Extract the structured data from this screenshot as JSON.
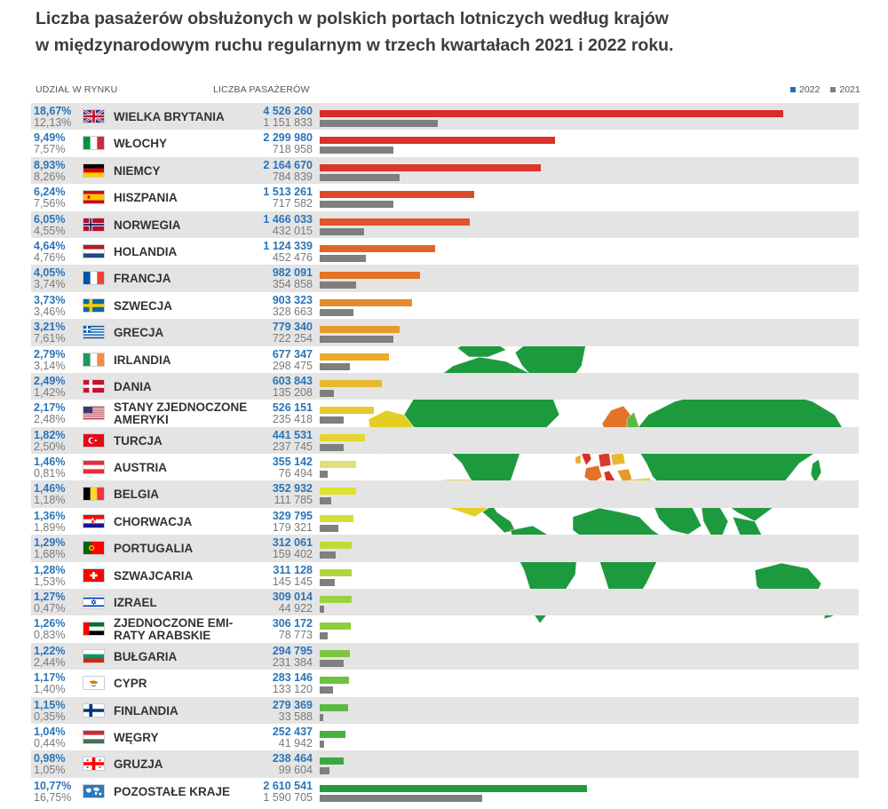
{
  "title_line1": "Liczba pasażerów obsłużonych w polskich portach lotniczych według krajów",
  "title_line2": "w międzynarodowym ruchu regularnym w trzech kwartałach 2021 i 2022 roku.",
  "header_share": "UDZIAŁ W RYNKU",
  "header_count": "LICZBA PASAŻERÓW",
  "legend": {
    "y2022": "2022",
    "y2021": "2021",
    "c2022": "#1f6fbf",
    "c2021": "#7f7f7f"
  },
  "colors": {
    "map_land": "#1e9a3e",
    "map_usa": "#e3cf23",
    "bar_2021": "#7f7f7f",
    "row_alt": "#e4e4e4"
  },
  "chart_data": {
    "type": "bar",
    "orientation": "horizontal",
    "xlim": [
      0,
      4600000
    ],
    "series_names": [
      "2022",
      "2021"
    ],
    "rows": [
      {
        "country": "WIELKA BRYTANIA",
        "share_2022": "18,67%",
        "share_2021": "12,13%",
        "v2022": 4526260,
        "v2021": 1151833,
        "v2022_label": "4 526 260",
        "v2021_label": "1 151 833",
        "color": "#d82d2b",
        "flag": "gb"
      },
      {
        "country": "WŁOCHY",
        "share_2022": "9,49%",
        "share_2021": "7,57%",
        "v2022": 2299980,
        "v2021": 718958,
        "v2022_label": "2 299 980",
        "v2021_label": "718 958",
        "color": "#d9312b",
        "flag": "it"
      },
      {
        "country": "NIEMCY",
        "share_2022": "8,93%",
        "share_2021": "8,26%",
        "v2022": 2164670,
        "v2021": 784839,
        "v2022_label": "2 164 670",
        "v2021_label": "784 839",
        "color": "#da382a",
        "flag": "de"
      },
      {
        "country": "HISZPANIA",
        "share_2022": "6,24%",
        "share_2021": "7,56%",
        "v2022": 1513261,
        "v2021": 717582,
        "v2022_label": "1 513 261",
        "v2021_label": "717 582",
        "color": "#dc4a2a",
        "flag": "es"
      },
      {
        "country": "NORWEGIA",
        "share_2022": "6,05%",
        "share_2021": "4,55%",
        "v2022": 1466033,
        "v2021": 432015,
        "v2022_label": "1 466 033",
        "v2021_label": "432 015",
        "color": "#de5529",
        "flag": "no"
      },
      {
        "country": "HOLANDIA",
        "share_2022": "4,64%",
        "share_2021": "4,76%",
        "v2022": 1124339,
        "v2021": 452476,
        "v2022_label": "1 124 339",
        "v2021_label": "452 476",
        "color": "#e06628",
        "flag": "nl"
      },
      {
        "country": "FRANCJA",
        "share_2022": "4,05%",
        "share_2021": "3,74%",
        "v2022": 982091,
        "v2021": 354858,
        "v2022_label": "982 091",
        "v2021_label": "354 858",
        "color": "#e37327",
        "flag": "fr"
      },
      {
        "country": "SZWECJA",
        "share_2022": "3,73%",
        "share_2021": "3,46%",
        "v2022": 903323,
        "v2021": 328663,
        "v2022_label": "903 323",
        "v2021_label": "328 663",
        "color": "#e58b2b",
        "flag": "se"
      },
      {
        "country": "GRECJA",
        "share_2022": "3,21%",
        "share_2021": "7,61%",
        "v2022": 779340,
        "v2021": 722254,
        "v2022_label": "779 340",
        "v2021_label": "722 254",
        "color": "#e79a2c",
        "flag": "gr"
      },
      {
        "country": "IRLANDIA",
        "share_2022": "2,79%",
        "share_2021": "3,14%",
        "v2022": 677347,
        "v2021": 298475,
        "v2022_label": "677 347",
        "v2021_label": "298 475",
        "color": "#e9aa2d",
        "flag": "ie"
      },
      {
        "country": "DANIA",
        "share_2022": "2,49%",
        "share_2021": "1,42%",
        "v2022": 603843,
        "v2021": 135208,
        "v2022_label": "603 843",
        "v2021_label": "135 208",
        "color": "#e9b92d",
        "flag": "dk"
      },
      {
        "country": "STANY ZJEDNOCZONE AMERYKI",
        "name_lines": [
          "STANY ZJEDNOCZONE",
          "AMERYKI"
        ],
        "share_2022": "2,17%",
        "share_2021": "2,48%",
        "v2022": 526151,
        "v2021": 235418,
        "v2022_label": "526 151",
        "v2021_label": "235 418",
        "color": "#e6c92e",
        "flag": "us"
      },
      {
        "country": "TURCJA",
        "share_2022": "1,82%",
        "share_2021": "2,50%",
        "v2022": 441531,
        "v2021": 237745,
        "v2022_label": "441 531",
        "v2021_label": "237 745",
        "color": "#e5d62e",
        "flag": "tr"
      },
      {
        "country": "AUSTRIA",
        "share_2022": "1,46%",
        "share_2021": "0,81%",
        "v2022": 355142,
        "v2021": 76494,
        "v2022_label": "355 142",
        "v2021_label": "76 494",
        "color": "#dfe07a",
        "flag": "at"
      },
      {
        "country": "BELGIA",
        "share_2022": "1,46%",
        "share_2021": "1,18%",
        "v2022": 352932,
        "v2021": 111785,
        "v2022_label": "352 932",
        "v2021_label": "111 785",
        "color": "#dde12f",
        "flag": "be"
      },
      {
        "country": "CHORWACJA",
        "share_2022": "1,36%",
        "share_2021": "1,89%",
        "v2022": 329795,
        "v2021": 179321,
        "v2022_label": "329 795",
        "v2021_label": "179 321",
        "color": "#cfe03a",
        "flag": "hr"
      },
      {
        "country": "PORTUGALIA",
        "share_2022": "1,29%",
        "share_2021": "1,68%",
        "v2022": 312061,
        "v2021": 159402,
        "v2022_label": "312 061",
        "v2021_label": "159 402",
        "color": "#bddc3b",
        "flag": "pt"
      },
      {
        "country": "SZWAJCARIA",
        "share_2022": "1,28%",
        "share_2021": "1,53%",
        "v2022": 311128,
        "v2021": 145145,
        "v2022_label": "311 128",
        "v2021_label": "145 145",
        "color": "#acd73c",
        "flag": "ch"
      },
      {
        "country": "IZRAEL",
        "share_2022": "1,27%",
        "share_2021": "0,47%",
        "v2022": 309014,
        "v2021": 44922,
        "v2022_label": "309 014",
        "v2021_label": "44 922",
        "color": "#9cd23d",
        "flag": "il"
      },
      {
        "country": "ZJEDNOCZONE EMIRATY ARABSKIE",
        "name_lines": [
          "ZJEDNOCZONE EMI-",
          "RATY ARABSKIE"
        ],
        "share_2022": "1,26%",
        "share_2021": "0,83%",
        "v2022": 306172,
        "v2021": 78773,
        "v2022_label": "306 172",
        "v2021_label": "78 773",
        "color": "#8dcd3e",
        "flag": "ae"
      },
      {
        "country": "BUŁGARIA",
        "share_2022": "1,22%",
        "share_2021": "2,44%",
        "v2022": 294795,
        "v2021": 231384,
        "v2022_label": "294 795",
        "v2021_label": "231 384",
        "color": "#7dc63e",
        "flag": "bg"
      },
      {
        "country": "CYPR",
        "share_2022": "1,17%",
        "share_2021": "1,40%",
        "v2022": 283146,
        "v2021": 133120,
        "v2022_label": "283 146",
        "v2021_label": "133 120",
        "color": "#6ec13f",
        "flag": "cy"
      },
      {
        "country": "FINLANDIA",
        "share_2022": "1,15%",
        "share_2021": "0,35%",
        "v2022": 279369,
        "v2021": 33588,
        "v2022_label": "279 369",
        "v2021_label": "33 588",
        "color": "#5cb83f",
        "flag": "fi"
      },
      {
        "country": "WĘGRY",
        "share_2022": "1,04%",
        "share_2021": "0,44%",
        "v2022": 252437,
        "v2021": 41942,
        "v2022_label": "252 437",
        "v2021_label": "41 942",
        "color": "#4bb040",
        "flag": "hu"
      },
      {
        "country": "GRUZJA",
        "share_2022": "0,98%",
        "share_2021": "1,05%",
        "v2022": 238464,
        "v2021": 99604,
        "v2022_label": "238 464",
        "v2021_label": "99 604",
        "color": "#3aa740",
        "flag": "ge"
      },
      {
        "country": "POZOSTAŁE KRAJE",
        "share_2022": "10,77%",
        "share_2021": "16,75%",
        "v2022": 2610541,
        "v2021": 1590705,
        "v2022_label": "2 610 541",
        "v2021_label": "1 590 705",
        "color": "#24993f",
        "flag": "world"
      }
    ]
  }
}
